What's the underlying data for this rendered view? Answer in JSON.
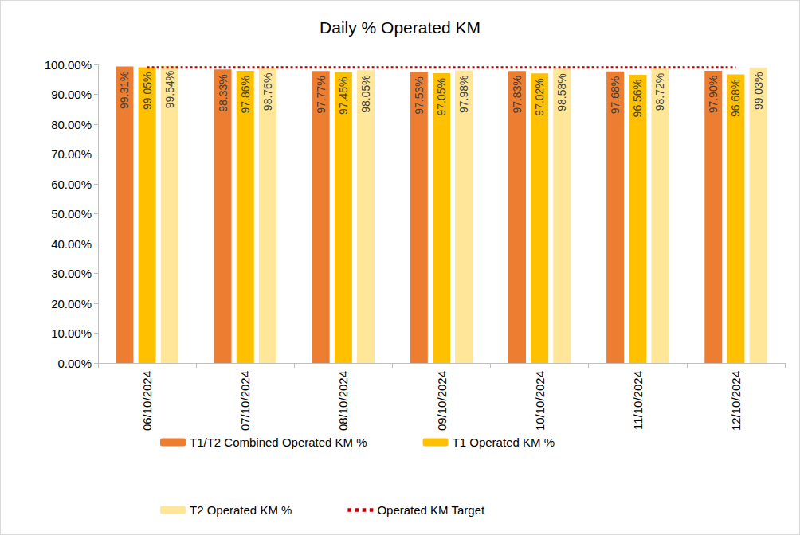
{
  "chart_data": {
    "type": "bar",
    "title": "Daily % Operated KM",
    "categories": [
      "06/10/2024",
      "07/10/2024",
      "08/10/2024",
      "09/10/2024",
      "10/10/2024",
      "11/10/2024",
      "12/10/2024"
    ],
    "series": [
      {
        "name": "T1/T2 Combined Operated KM %",
        "color": "#ED7D31",
        "values": [
          99.31,
          98.33,
          97.77,
          97.53,
          97.83,
          97.68,
          97.9
        ],
        "value_labels": [
          "99.31%",
          "98.33%",
          "97.77%",
          "97.53%",
          "97.83%",
          "97.68%",
          "97.90%"
        ]
      },
      {
        "name": "T1 Operated KM %",
        "color": "#FFC000",
        "values": [
          99.05,
          97.86,
          97.45,
          97.05,
          97.02,
          96.56,
          96.68
        ],
        "value_labels": [
          "99.05%",
          "97.86%",
          "97.45%",
          "97.05%",
          "97.02%",
          "96.56%",
          "96.68%"
        ]
      },
      {
        "name": "T2 Operated KM %",
        "color": "#FFE699",
        "values": [
          99.54,
          98.76,
          98.05,
          97.98,
          98.58,
          98.72,
          99.03
        ],
        "value_labels": [
          "99.54%",
          "98.76%",
          "98.05%",
          "97.98%",
          "98.58%",
          "98.72%",
          "99.03%"
        ]
      },
      {
        "name": "Operated KM Target",
        "color": "#C00000",
        "type": "line",
        "line_style": "dotted",
        "marker": "none",
        "data_labels": false,
        "values": [
          99,
          99,
          99,
          99,
          99,
          99,
          99
        ]
      }
    ],
    "ylim": [
      0,
      100
    ],
    "yticks": [
      {
        "value": 0,
        "label": "0.00%"
      },
      {
        "value": 10,
        "label": "10.00%"
      },
      {
        "value": 20,
        "label": "20.00%"
      },
      {
        "value": 30,
        "label": "30.00%"
      },
      {
        "value": 40,
        "label": "40.00%"
      },
      {
        "value": 50,
        "label": "50.00%"
      },
      {
        "value": 60,
        "label": "60.00%"
      },
      {
        "value": 70,
        "label": "70.00%"
      },
      {
        "value": 80,
        "label": "80.00%"
      },
      {
        "value": 90,
        "label": "90.00%"
      },
      {
        "value": 100,
        "label": "100.00%"
      }
    ],
    "grid": false,
    "data_labels": true,
    "legend": "bottom"
  }
}
